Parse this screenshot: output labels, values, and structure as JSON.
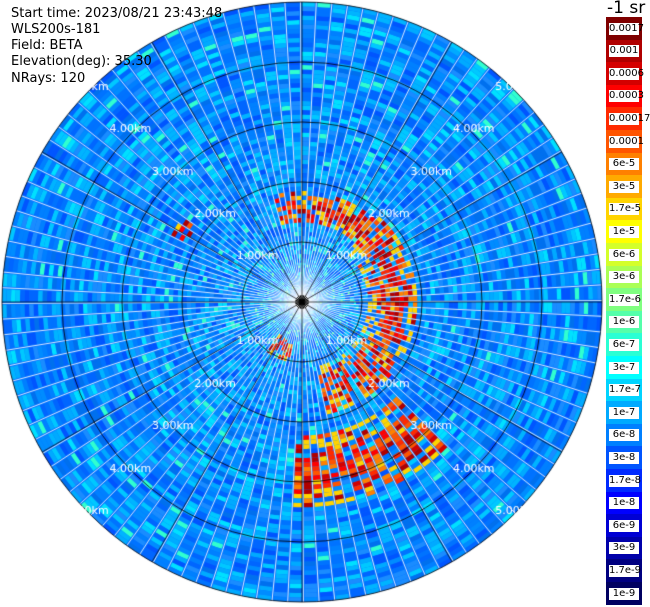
{
  "info": {
    "start_time": "Start time: 2023/08/21 23:43:48",
    "instrument": "WLS200s-181",
    "field": "Field: BETA",
    "elevation": "Elevation(deg): 35.30",
    "nrays": "NRays: 120"
  },
  "colorbar": {
    "title": "-1 sr",
    "levels": [
      {
        "label": "0.0017",
        "color": "#7f0000"
      },
      {
        "label": "0.001",
        "color": "#b00000"
      },
      {
        "label": "0.0006",
        "color": "#d40000"
      },
      {
        "label": "0.0003",
        "color": "#ff0000"
      },
      {
        "label": "0.00017",
        "color": "#ff2a00"
      },
      {
        "label": "0.0001",
        "color": "#ff5500"
      },
      {
        "label": "6e-5",
        "color": "#ff8000"
      },
      {
        "label": "3e-5",
        "color": "#ffaa00"
      },
      {
        "label": "1.7e-5",
        "color": "#ffd400"
      },
      {
        "label": "1e-5",
        "color": "#ffff00"
      },
      {
        "label": "6e-6",
        "color": "#d4ff2a"
      },
      {
        "label": "3e-6",
        "color": "#aaff55"
      },
      {
        "label": "1.7e-6",
        "color": "#80ff80"
      },
      {
        "label": "1e-6",
        "color": "#55ffaa"
      },
      {
        "label": "6e-7",
        "color": "#2affd4"
      },
      {
        "label": "3e-7",
        "color": "#00ffff"
      },
      {
        "label": "1.7e-7",
        "color": "#00d4ff"
      },
      {
        "label": "1e-7",
        "color": "#00aaff"
      },
      {
        "label": "6e-8",
        "color": "#0080ff"
      },
      {
        "label": "3e-8",
        "color": "#0055ff"
      },
      {
        "label": "1.7e-8",
        "color": "#002aff"
      },
      {
        "label": "1e-8",
        "color": "#0000ff"
      },
      {
        "label": "6e-9",
        "color": "#0000d4"
      },
      {
        "label": "3e-9",
        "color": "#0000aa"
      },
      {
        "label": "1.7e-9",
        "color": "#000080"
      },
      {
        "label": "1e-9",
        "color": "#000060"
      }
    ]
  },
  "chart_data": {
    "type": "heatmap",
    "projection": "polar PPI",
    "field": "BETA",
    "elevation_deg": 35.3,
    "n_rays": 120,
    "range_rings_km": [
      1,
      2,
      3,
      4,
      5
    ],
    "ring_labels": [
      "1.00km",
      "2.00km",
      "3.00km",
      "4.00km",
      "5.00km"
    ],
    "background_level": "6e-8",
    "features": [
      {
        "description": "high-backscatter arc",
        "range_km": [
          1.1,
          1.9
        ],
        "azimuth_deg": [
          40,
          165
        ],
        "level": "0.0003"
      },
      {
        "description": "high-backscatter band",
        "range_km": [
          1.3,
          1.8
        ],
        "azimuth_deg": [
          345,
          40
        ],
        "level": "0.0003"
      },
      {
        "description": "high-backscatter band",
        "range_km": [
          0.6,
          1.0
        ],
        "azimuth_deg": [
          190,
          215
        ],
        "level": "0.0003"
      },
      {
        "description": "high-backscatter band",
        "range_km": [
          2.2,
          3.4
        ],
        "azimuth_deg": [
          135,
          180
        ],
        "level": "0.0003"
      },
      {
        "description": "high-backscatter spot",
        "range_km": [
          2.1,
          2.4
        ],
        "azimuth_deg": [
          295,
          305
        ],
        "level": "0.0003"
      }
    ]
  }
}
